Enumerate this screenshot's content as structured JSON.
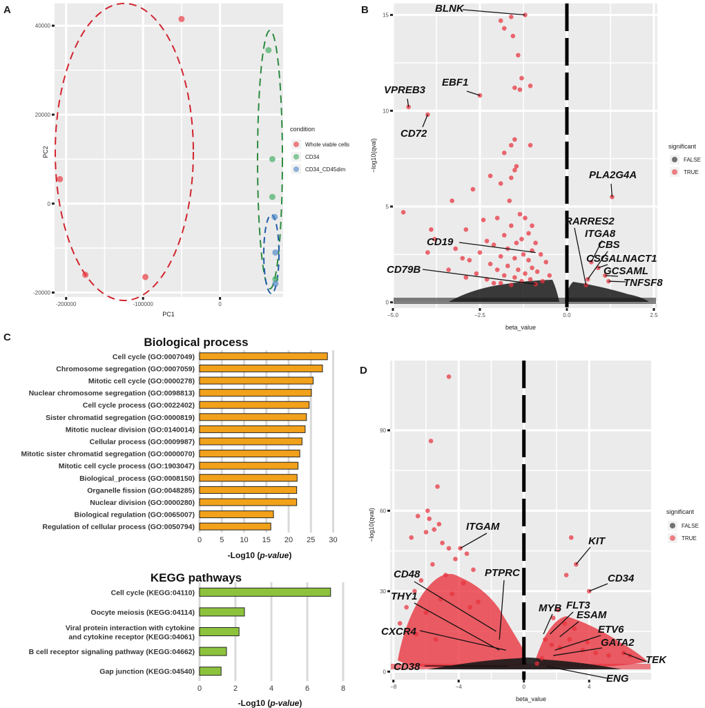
{
  "colors": {
    "panel_bg": "#ebebeb",
    "grid": "#ffffff",
    "red_point": "#e8313b",
    "black_point": "#1a1a1a",
    "green_point": "#3aaa5c",
    "blue_point": "#4b86c8",
    "red_ellipse": "#d2222d",
    "green_ellipse": "#2a8a3e",
    "blue_ellipse": "#1e5aa8",
    "bp_bar": "#f2a11a",
    "kegg_bar": "#8cc23c",
    "bar_grid": "#d9d9d9"
  },
  "panels": {
    "a": "A",
    "b": "B",
    "c": "C",
    "d": "D"
  },
  "chart_data": [
    {
      "id": "A",
      "type": "scatter",
      "title": "",
      "xlabel": "PC1",
      "ylabel": "PC2",
      "xlim": [
        -215000,
        82000
      ],
      "ylim": [
        -21000,
        45000
      ],
      "xticks": [
        -200000,
        -100000,
        0
      ],
      "xtick_labels": [
        "-200000",
        "-100000",
        "0"
      ],
      "yticks": [
        -20000,
        0,
        20000,
        40000
      ],
      "ytick_labels": [
        "-20000",
        "0",
        "20000",
        "40000"
      ],
      "legend": {
        "title": "condition",
        "position": "right",
        "entries": [
          {
            "label": "Whole viable cells",
            "color": "#e8313b"
          },
          {
            "label": "CD34",
            "color": "#3aaa5c"
          },
          {
            "label": "CD34_CD45dim",
            "color": "#4b86c8"
          }
        ]
      },
      "series": [
        {
          "name": "Whole viable cells",
          "color": "#e8313b",
          "points": [
            [
              -50000,
              41500
            ],
            [
              -208000,
              5500
            ],
            [
              -175000,
              -16000
            ],
            [
              -97000,
              -16500
            ]
          ]
        },
        {
          "name": "CD34",
          "color": "#3aaa5c",
          "points": [
            [
              63000,
              34500
            ],
            [
              68000,
              10000
            ],
            [
              68000,
              1500
            ],
            [
              72000,
              -17000
            ]
          ]
        },
        {
          "name": "CD34_CD45dim",
          "color": "#4b86c8",
          "points": [
            [
              71000,
              -3000
            ],
            [
              72000,
              -11000
            ],
            [
              72000,
              -18000
            ]
          ]
        }
      ]
    },
    {
      "id": "B",
      "type": "scatter",
      "title": "",
      "xlabel": "beta_value",
      "ylabel": "−log10(qval)",
      "xlim": [
        -5.0,
        2.6
      ],
      "ylim": [
        -0.3,
        15.6
      ],
      "xticks": [
        -5.0,
        -2.5,
        0.0,
        2.5
      ],
      "xtick_labels": [
        "−5.0",
        "−2.5",
        "0.0",
        "2.5"
      ],
      "yticks": [
        0,
        5,
        10,
        15
      ],
      "ytick_labels": [
        "0",
        "5",
        "10",
        "15"
      ],
      "vline": 0,
      "legend": {
        "title": "significant",
        "position": "right",
        "entries": [
          {
            "label": "FALSE",
            "color": "#1a1a1a"
          },
          {
            "label": "TRUE",
            "color": "#e8313b"
          }
        ]
      },
      "significant_points": [
        [
          -1.2,
          15.0
        ],
        [
          -1.6,
          14.9
        ],
        [
          -1.9,
          14.7
        ],
        [
          -1.8,
          14.3
        ],
        [
          -1.55,
          13.9
        ],
        [
          -1.4,
          12.9
        ],
        [
          -1.3,
          11.7
        ],
        [
          -1.05,
          11.3
        ],
        [
          -1.5,
          11.2
        ],
        [
          -1.35,
          11.1
        ],
        [
          -2.5,
          10.8
        ],
        [
          -4.55,
          10.2
        ],
        [
          -4.0,
          9.8
        ],
        [
          -1.5,
          8.5
        ],
        [
          -1.6,
          8.2
        ],
        [
          -1.8,
          7.8
        ],
        [
          -1.05,
          8.2
        ],
        [
          -1.45,
          7.1
        ],
        [
          -1.5,
          6.9
        ],
        [
          -1.6,
          6.5
        ],
        [
          -1.9,
          6.2
        ],
        [
          -2.2,
          6.6
        ],
        [
          -2.7,
          5.9
        ],
        [
          -1.65,
          5.3
        ],
        [
          -3.3,
          5.3
        ],
        [
          -4.7,
          4.7
        ],
        [
          -2.4,
          4.3
        ],
        [
          -3.9,
          3.8
        ],
        [
          -3.8,
          3.3
        ],
        [
          -1.35,
          4.6
        ],
        [
          -1.2,
          4.4
        ],
        [
          -2.0,
          4.4
        ],
        [
          -1.0,
          4.0
        ],
        [
          -1.6,
          4.0
        ],
        [
          -2.9,
          3.8
        ],
        [
          -1.1,
          3.6
        ],
        [
          -1.8,
          3.5
        ],
        [
          -1.3,
          3.3
        ],
        [
          -2.3,
          3.2
        ],
        [
          -1.45,
          3.1
        ],
        [
          -0.9,
          3.1
        ],
        [
          -2.1,
          3.0
        ],
        [
          -3.2,
          2.8
        ],
        [
          -1.7,
          2.8
        ],
        [
          -1.0,
          2.7
        ],
        [
          -4.0,
          2.6
        ],
        [
          -2.5,
          2.6
        ],
        [
          -1.25,
          2.5
        ],
        [
          -0.75,
          2.5
        ],
        [
          -1.9,
          2.4
        ],
        [
          -3.0,
          2.3
        ],
        [
          -1.5,
          2.3
        ],
        [
          -2.8,
          2.2
        ],
        [
          -1.1,
          2.2
        ],
        [
          -0.6,
          2.1
        ],
        [
          -2.2,
          2.0
        ],
        [
          -1.7,
          1.9
        ],
        [
          -1.0,
          1.8
        ],
        [
          -3.4,
          1.7
        ],
        [
          -2.0,
          1.7
        ],
        [
          -1.4,
          1.7
        ],
        [
          -0.85,
          1.6
        ],
        [
          -2.6,
          1.5
        ],
        [
          -1.2,
          1.5
        ],
        [
          -0.5,
          1.4
        ],
        [
          -1.8,
          1.4
        ],
        [
          -2.9,
          1.3
        ],
        [
          -1.5,
          1.3
        ],
        [
          -1.05,
          1.2
        ],
        [
          -2.3,
          1.2
        ],
        [
          -0.7,
          1.1
        ],
        [
          -1.3,
          1.1
        ],
        [
          -1.9,
          1.0
        ],
        [
          -0.9,
          0.95
        ],
        [
          -2.1,
          1.0
        ],
        [
          -1.6,
          0.9
        ],
        [
          1.3,
          5.5
        ],
        [
          0.6,
          1.2
        ],
        [
          0.7,
          2.1
        ],
        [
          0.9,
          1.8
        ],
        [
          1.1,
          1.4
        ],
        [
          1.2,
          1.1
        ],
        [
          0.55,
          0.9
        ]
      ],
      "annotations": [
        {
          "label": "BLNK",
          "x": -1.2,
          "y": 15.0
        },
        {
          "label": "VPREB3",
          "x": -4.55,
          "y": 10.2
        },
        {
          "label": "EBF1",
          "x": -2.5,
          "y": 10.8
        },
        {
          "label": "CD72",
          "x": -4.0,
          "y": 9.8
        },
        {
          "label": "PLA2G4A",
          "x": 1.3,
          "y": 5.5
        },
        {
          "label": "RARRES2",
          "x": 0.55,
          "y": 0.9
        },
        {
          "label": "ITGA8",
          "x": 0.7,
          "y": 2.1
        },
        {
          "label": "CBS",
          "x": 0.6,
          "y": 1.2
        },
        {
          "label": "CSGALNACT1",
          "x": 0.9,
          "y": 1.8
        },
        {
          "label": "GCSAML",
          "x": 1.1,
          "y": 1.4
        },
        {
          "label": "TNFSF8",
          "x": 1.2,
          "y": 1.1
        },
        {
          "label": "CD19",
          "x": -0.9,
          "y": 2.6
        },
        {
          "label": "CD79B",
          "x": -0.9,
          "y": 0.95
        }
      ]
    },
    {
      "id": "C1",
      "type": "bar",
      "orientation": "horizontal",
      "title": "Biological process",
      "xlabel_main": "-Log10 (",
      "xlabel_italic": "p-value",
      "xlabel_end": ")",
      "xlim": [
        0,
        31
      ],
      "xticks": [
        0,
        5,
        10,
        15,
        20,
        25,
        30
      ],
      "xtick_labels": [
        "0",
        "5",
        "10",
        "15",
        "20",
        "25",
        "30"
      ],
      "categories": [
        "Cell cycle (GO:0007049)",
        "Chromosome segregation (GO:0007059)",
        "Mitotic cell cycle (GO:0000278)",
        "Nuclear chromosome segregation (GO:0098813)",
        "Cell cycle process (GO:0022402)",
        "Sister chromatid segregation (GO:0000819)",
        "Mitotic nuclear division (GO:0140014)",
        "Cellular process (GO:0009987)",
        "Mitotic sister chromatid segregation (GO:0000070)",
        "Mitotic cell cycle process (GO:1903047)",
        "Biological_process (GO:0008150)",
        "Organelle fission (GO:0048285)",
        "Nuclear division (GO:0000280)",
        "Biological regulation (GO:0065007)",
        "Regulation of cellular process (GO:0050794)"
      ],
      "values": [
        28.7,
        27.6,
        25.5,
        25.1,
        24.6,
        24.0,
        23.7,
        23.0,
        22.5,
        22.1,
        21.9,
        21.8,
        21.8,
        16.6,
        16.0
      ]
    },
    {
      "id": "C2",
      "type": "bar",
      "orientation": "horizontal",
      "title": "KEGG pathways",
      "xlabel_main": "-Log10 (",
      "xlabel_italic": "p-value",
      "xlabel_end": ")",
      "xlim": [
        0,
        9
      ],
      "xticks": [
        0,
        2,
        4,
        6,
        8
      ],
      "xtick_labels": [
        "0",
        "2",
        "4",
        "6",
        "8"
      ],
      "categories": [
        "Cell cycle (KEGG:04110)",
        "Oocyte meiosis (KEGG:04114)",
        "Viral protein interaction with cytokine\nand cytokine receptor (KEGG:04061)",
        "B cell receptor signaling pathway (KEGG:04662)",
        "Gap junction (KEGG:04540)"
      ],
      "values": [
        7.3,
        2.5,
        2.2,
        1.5,
        1.2
      ]
    },
    {
      "id": "D",
      "type": "scatter",
      "title": "",
      "xlabel": "beta_value",
      "ylabel": "−log10(qval)",
      "xlim": [
        -8.2,
        7.8
      ],
      "ylim": [
        -3,
        116
      ],
      "xticks": [
        -8,
        -4,
        0,
        4
      ],
      "xtick_labels": [
        "−8",
        "−4",
        "0",
        "4"
      ],
      "yticks": [
        0,
        30,
        60,
        90
      ],
      "ytick_labels": [
        "0",
        "30",
        "60",
        "90"
      ],
      "vline": 0,
      "legend": {
        "title": "significant",
        "position": "right",
        "entries": [
          {
            "label": "FALSE",
            "color": "#1a1a1a"
          },
          {
            "label": "TRUE",
            "color": "#e8313b"
          }
        ]
      },
      "significant_points": [
        [
          -4.6,
          110
        ],
        [
          -5.7,
          86
        ],
        [
          -5.3,
          69
        ],
        [
          -5.9,
          60
        ],
        [
          -6.5,
          58
        ],
        [
          -5.8,
          57
        ],
        [
          -5.2,
          55
        ],
        [
          -5.5,
          53
        ],
        [
          -6.0,
          52
        ],
        [
          -6.9,
          50
        ],
        [
          -5.0,
          48
        ],
        [
          -4.6,
          46
        ],
        [
          -3.9,
          46
        ],
        [
          -3.5,
          44
        ],
        [
          -4.2,
          42
        ],
        [
          -5.6,
          40
        ],
        [
          -3.1,
          38
        ],
        [
          -4.8,
          36
        ],
        [
          -6.3,
          34
        ],
        [
          -3.7,
          33
        ],
        [
          -6.7,
          30
        ],
        [
          -4.4,
          29
        ],
        [
          -5.1,
          27
        ],
        [
          -7.2,
          24
        ],
        [
          -6.0,
          22
        ],
        [
          -2.8,
          26
        ],
        [
          -3.3,
          24
        ],
        [
          -7.6,
          18
        ],
        [
          -6.6,
          14
        ],
        [
          -5.4,
          12
        ],
        [
          2.9,
          50
        ],
        [
          3.2,
          40
        ],
        [
          4.0,
          30
        ],
        [
          2.6,
          36
        ],
        [
          2.1,
          23
        ],
        [
          1.8,
          20
        ],
        [
          2.5,
          18
        ],
        [
          3.1,
          16
        ],
        [
          1.3,
          12
        ],
        [
          1.7,
          10
        ],
        [
          2.2,
          9
        ],
        [
          3.6,
          8
        ],
        [
          4.4,
          7
        ],
        [
          5.2,
          6
        ],
        [
          6.1,
          7
        ],
        [
          6.5,
          6
        ],
        [
          1.1,
          5
        ],
        [
          0.8,
          3
        ],
        [
          2.8,
          12
        ],
        [
          3.9,
          11
        ]
      ],
      "annotations": [
        {
          "label": "ITGAM",
          "x": -3.9,
          "y": 46
        },
        {
          "label": "KIT",
          "x": 3.2,
          "y": 40
        },
        {
          "label": "CD48",
          "x": -1.7,
          "y": 15
        },
        {
          "label": "PTPRC",
          "x": -1.5,
          "y": 12
        },
        {
          "label": "CD34",
          "x": 4.0,
          "y": 30
        },
        {
          "label": "THY1",
          "x": -1.5,
          "y": 8
        },
        {
          "label": "MYB",
          "x": 1.2,
          "y": 14
        },
        {
          "label": "FLT3",
          "x": 1.6,
          "y": 14
        },
        {
          "label": "ESAM",
          "x": 2.2,
          "y": 13
        },
        {
          "label": "CXCR4",
          "x": -1.1,
          "y": 8
        },
        {
          "label": "ETV6",
          "x": 1.9,
          "y": 8
        },
        {
          "label": "GATA2",
          "x": 1.8,
          "y": 6
        },
        {
          "label": "TEK",
          "x": 6.1,
          "y": 7
        },
        {
          "label": "CD38",
          "x": -1.0,
          "y": 2
        },
        {
          "label": "ENG",
          "x": 1.4,
          "y": 2
        }
      ]
    }
  ]
}
